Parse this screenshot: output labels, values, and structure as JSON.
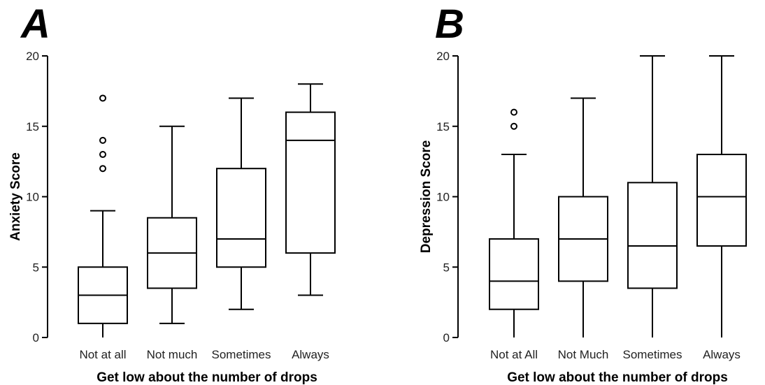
{
  "chart_data": [
    {
      "type": "box",
      "panel_label": "A",
      "xlabel": "Get low about the number of drops",
      "ylabel": "Anxiety Score",
      "ylim": [
        0,
        20
      ],
      "yticks": [
        0,
        5,
        10,
        15,
        20
      ],
      "categories": [
        "Not at all",
        "Not much",
        "Sometimes",
        "Always"
      ],
      "boxes": [
        {
          "whisker_low": 0,
          "q1": 1,
          "median": 3,
          "q3": 5,
          "whisker_high": 9,
          "outliers": [
            12,
            13,
            14,
            17
          ]
        },
        {
          "whisker_low": 1,
          "q1": 3.5,
          "median": 6,
          "q3": 8.5,
          "whisker_high": 15,
          "outliers": []
        },
        {
          "whisker_low": 2,
          "q1": 5,
          "median": 7,
          "q3": 12,
          "whisker_high": 17,
          "outliers": []
        },
        {
          "whisker_low": 3,
          "q1": 6,
          "median": 14,
          "q3": 16,
          "whisker_high": 18,
          "outliers": []
        }
      ]
    },
    {
      "type": "box",
      "panel_label": "B",
      "xlabel": "Get low about the number of drops",
      "ylabel": "Depression Score",
      "ylim": [
        0,
        20
      ],
      "yticks": [
        0,
        5,
        10,
        15,
        20
      ],
      "categories": [
        "Not at All",
        "Not Much",
        "Sometimes",
        "Always"
      ],
      "boxes": [
        {
          "whisker_low": 0,
          "q1": 2,
          "median": 4,
          "q3": 7,
          "whisker_high": 13,
          "outliers": [
            15,
            16
          ]
        },
        {
          "whisker_low": 0,
          "q1": 4,
          "median": 7,
          "q3": 10,
          "whisker_high": 17,
          "outliers": []
        },
        {
          "whisker_low": 0,
          "q1": 3.5,
          "median": 6.5,
          "q3": 11,
          "whisker_high": 20,
          "outliers": []
        },
        {
          "whisker_low": 0,
          "q1": 6.5,
          "median": 10,
          "q3": 13,
          "whisker_high": 20,
          "outliers": []
        }
      ]
    }
  ]
}
